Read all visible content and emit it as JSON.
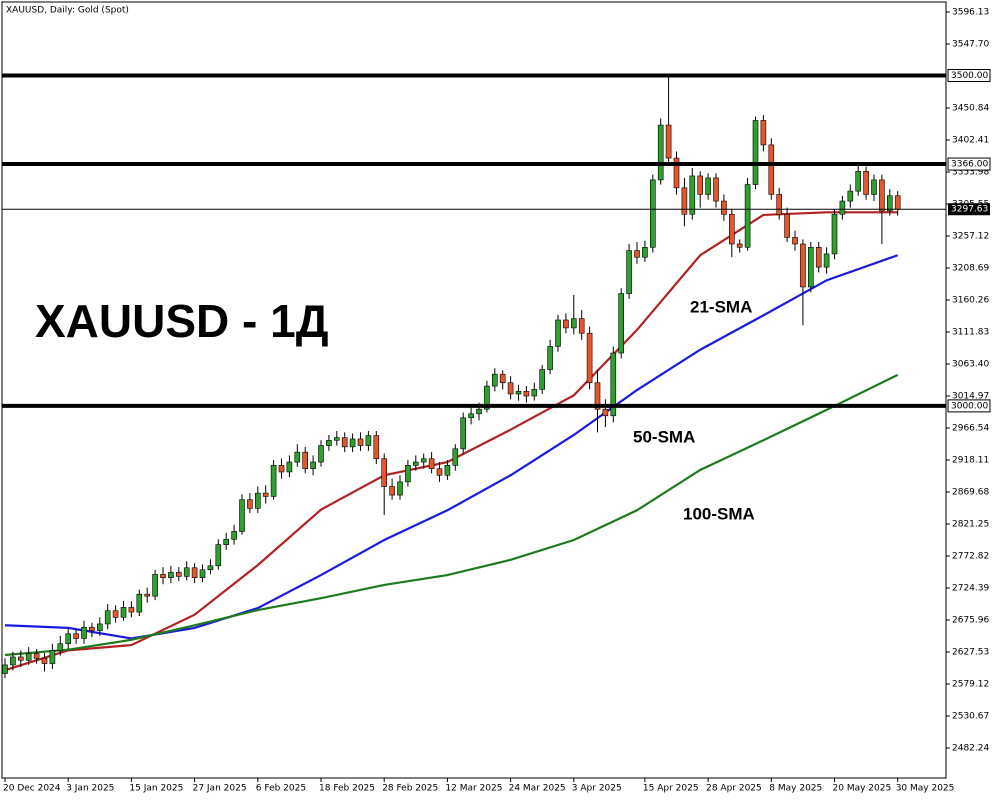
{
  "chart_data": {
    "type": "candlestick",
    "title": "XAUUSD, Daily: Gold (Spot)",
    "annotation": "XAUUSD - 1Д",
    "ylim": [
      2436.84,
      3611.26
    ],
    "yticks": [
      3596.13,
      {
        "value": 3547.7,
        "label": "3547.70"
      },
      3450.84,
      3402.41,
      3353.98,
      3305.55,
      3257.12,
      3208.69,
      3160.26,
      3111.83,
      {
        "value": 3063.4,
        "label": "3063.40"
      },
      3014.97,
      2966.54,
      2918.11,
      2869.68,
      2821.25,
      2772.82,
      2724.39,
      2675.96,
      2627.53,
      2579.12,
      2530.67,
      2482.24
    ],
    "levels": [
      {
        "value": 3500,
        "label": "3500.00"
      },
      {
        "value": 3366,
        "label": "3366.00"
      },
      {
        "value": 3000,
        "label": "3000.00"
      }
    ],
    "last_price": 3297.63,
    "up_color": "#2ea02e",
    "down_color": "#e4572e",
    "categories": [
      "20 Dec 2024",
      null,
      null,
      null,
      null,
      null,
      null,
      null,
      "3 Jan 2025",
      null,
      null,
      null,
      null,
      null,
      null,
      null,
      "15 Jan 2025",
      null,
      null,
      null,
      null,
      null,
      null,
      null,
      "27 Jan 2025",
      null,
      null,
      null,
      null,
      null,
      null,
      null,
      "6 Feb 2025",
      null,
      null,
      null,
      null,
      null,
      null,
      null,
      "18 Feb 2025",
      null,
      null,
      null,
      null,
      null,
      null,
      null,
      "28 Feb 2025",
      null,
      null,
      null,
      null,
      null,
      null,
      null,
      "12 Mar 2025",
      null,
      null,
      null,
      null,
      null,
      null,
      null,
      "24 Mar 2025",
      null,
      null,
      null,
      null,
      null,
      null,
      null,
      "3 Apr 2025",
      null,
      null,
      null,
      null,
      null,
      null,
      null,
      null,
      "15 Apr 2025",
      null,
      null,
      null,
      null,
      null,
      null,
      null,
      "28 Apr 2025",
      null,
      null,
      null,
      null,
      null,
      null,
      null,
      "8 May 2025",
      null,
      null,
      null,
      null,
      null,
      null,
      null,
      "20 May 2025",
      null,
      null,
      null,
      null,
      null,
      null,
      null,
      "30 May 2025"
    ],
    "open": [
      2595,
      2608,
      2620,
      2615,
      2625,
      2618,
      2610,
      2630,
      2640,
      2655,
      2648,
      2665,
      2660,
      2670,
      2690,
      2680,
      2695,
      2688,
      2715,
      2712,
      2745,
      2740,
      2748,
      2742,
      2755,
      2740,
      2752,
      2758,
      2790,
      2798,
      2810,
      2858,
      2845,
      2868,
      2863,
      2910,
      2900,
      2915,
      2930,
      2905,
      2915,
      2940,
      2948,
      2952,
      2938,
      2950,
      2940,
      2955,
      2920,
      2878,
      2865,
      2885,
      2910,
      2915,
      2920,
      2905,
      2895,
      2910,
      2935,
      2982,
      2988,
      2995,
      3030,
      3048,
      3035,
      3018,
      3022,
      3015,
      3025,
      3055,
      3090,
      3130,
      3118,
      3132,
      3110,
      3035,
      2995,
      2985,
      3080,
      3170,
      3235,
      3225,
      3240,
      3342,
      3425,
      3375,
      3330,
      3290,
      3348,
      3320,
      3345,
      3310,
      3290,
      3245,
      3240,
      3335,
      3432,
      3395,
      3320,
      3290,
      3255,
      3245,
      3180,
      3240,
      3210,
      3230,
      3290,
      3310,
      3325,
      3355,
      3320,
      3342,
      3295,
      3318
    ],
    "high": [
      2618,
      2628,
      2630,
      2635,
      2632,
      2626,
      2640,
      2652,
      2664,
      2662,
      2675,
      2672,
      2680,
      2700,
      2698,
      2705,
      2704,
      2722,
      2725,
      2752,
      2756,
      2758,
      2756,
      2765,
      2762,
      2760,
      2768,
      2798,
      2808,
      2820,
      2866,
      2868,
      2878,
      2880,
      2918,
      2920,
      2925,
      2942,
      2938,
      2925,
      2948,
      2956,
      2962,
      2960,
      2958,
      2960,
      2962,
      2962,
      2928,
      2890,
      2895,
      2918,
      2925,
      2928,
      2930,
      2915,
      2918,
      2942,
      2990,
      2998,
      3005,
      3038,
      3057,
      3054,
      3045,
      3032,
      3030,
      3035,
      3062,
      3100,
      3138,
      3140,
      3168,
      3145,
      3120,
      3055,
      3010,
      3090,
      3178,
      3245,
      3248,
      3250,
      3350,
      3435,
      3500,
      3385,
      3345,
      3360,
      3355,
      3352,
      3352,
      3320,
      3298,
      3252,
      3345,
      3438,
      3440,
      3405,
      3330,
      3300,
      3265,
      3252,
      3248,
      3248,
      3240,
      3298,
      3318,
      3335,
      3365,
      3362,
      3350,
      3350,
      3328,
      3325
    ],
    "low": [
      2588,
      2600,
      2605,
      2608,
      2610,
      2598,
      2602,
      2622,
      2632,
      2640,
      2640,
      2650,
      2652,
      2662,
      2672,
      2675,
      2680,
      2682,
      2702,
      2706,
      2730,
      2732,
      2735,
      2736,
      2732,
      2733,
      2745,
      2752,
      2782,
      2790,
      2805,
      2838,
      2838,
      2852,
      2858,
      2890,
      2892,
      2908,
      2898,
      2895,
      2908,
      2932,
      2940,
      2930,
      2930,
      2932,
      2932,
      2912,
      2835,
      2858,
      2858,
      2878,
      2902,
      2905,
      2898,
      2885,
      2888,
      2902,
      2928,
      2972,
      2978,
      2990,
      3022,
      3025,
      3010,
      3008,
      3005,
      3008,
      3018,
      3048,
      3082,
      3110,
      3108,
      3100,
      3025,
      2960,
      2968,
      2975,
      3072,
      3162,
      3215,
      3218,
      3232,
      3335,
      3365,
      3320,
      3272,
      3282,
      3300,
      3312,
      3300,
      3280,
      3225,
      3232,
      3235,
      3328,
      3385,
      3312,
      3282,
      3248,
      3235,
      3122,
      3172,
      3202,
      3200,
      3222,
      3282,
      3300,
      3318,
      3312,
      3310,
      3245,
      3288,
      3288
    ],
    "close": [
      2608,
      2620,
      2615,
      2625,
      2618,
      2610,
      2630,
      2640,
      2655,
      2648,
      2665,
      2660,
      2670,
      2690,
      2680,
      2695,
      2688,
      2715,
      2712,
      2745,
      2740,
      2748,
      2742,
      2755,
      2740,
      2752,
      2758,
      2790,
      2798,
      2810,
      2858,
      2845,
      2868,
      2863,
      2910,
      2900,
      2915,
      2930,
      2905,
      2915,
      2940,
      2948,
      2952,
      2938,
      2950,
      2940,
      2955,
      2920,
      2878,
      2865,
      2885,
      2910,
      2915,
      2920,
      2905,
      2895,
      2910,
      2935,
      2982,
      2988,
      2995,
      3030,
      3048,
      3035,
      3018,
      3022,
      3015,
      3025,
      3055,
      3090,
      3130,
      3118,
      3132,
      3110,
      3035,
      2995,
      2985,
      3080,
      3170,
      3235,
      3225,
      3240,
      3342,
      3425,
      3375,
      3330,
      3290,
      3348,
      3320,
      3345,
      3310,
      3290,
      3245,
      3240,
      3335,
      3432,
      3395,
      3320,
      3290,
      3255,
      3245,
      3180,
      3240,
      3210,
      3230,
      3290,
      3310,
      3325,
      3355,
      3320,
      3342,
      3295,
      3318,
      3297.63
    ],
    "series": [
      {
        "name": "21-SMA",
        "color": "#b22222",
        "x": [
          0,
          8,
          16,
          24,
          32,
          40,
          48,
          56,
          64,
          72,
          80,
          88,
          96,
          104,
          113
        ],
        "values": [
          2600,
          2630,
          2638,
          2684,
          2759,
          2843,
          2895,
          2915,
          2964,
          3016,
          3115,
          3228,
          3289,
          3293,
          3293
        ]
      },
      {
        "name": "50-SMA",
        "color": "#1a1adf",
        "x": [
          0,
          8,
          16,
          24,
          32,
          40,
          48,
          56,
          64,
          72,
          80,
          88,
          96,
          104,
          113
        ],
        "values": [
          2668,
          2664,
          2648,
          2664,
          2694,
          2744,
          2797,
          2842,
          2895,
          2956,
          3024,
          3085,
          3137,
          3190,
          3228
        ]
      },
      {
        "name": "100-SMA",
        "color": "#1e7a1e",
        "x": [
          0,
          8,
          16,
          24,
          32,
          40,
          48,
          56,
          64,
          72,
          80,
          88,
          96,
          104,
          113
        ],
        "values": [
          2623,
          2631,
          2646,
          2668,
          2691,
          2709,
          2729,
          2744,
          2767,
          2797,
          2842,
          2903,
          2948,
          2994,
          3047
        ]
      }
    ]
  }
}
